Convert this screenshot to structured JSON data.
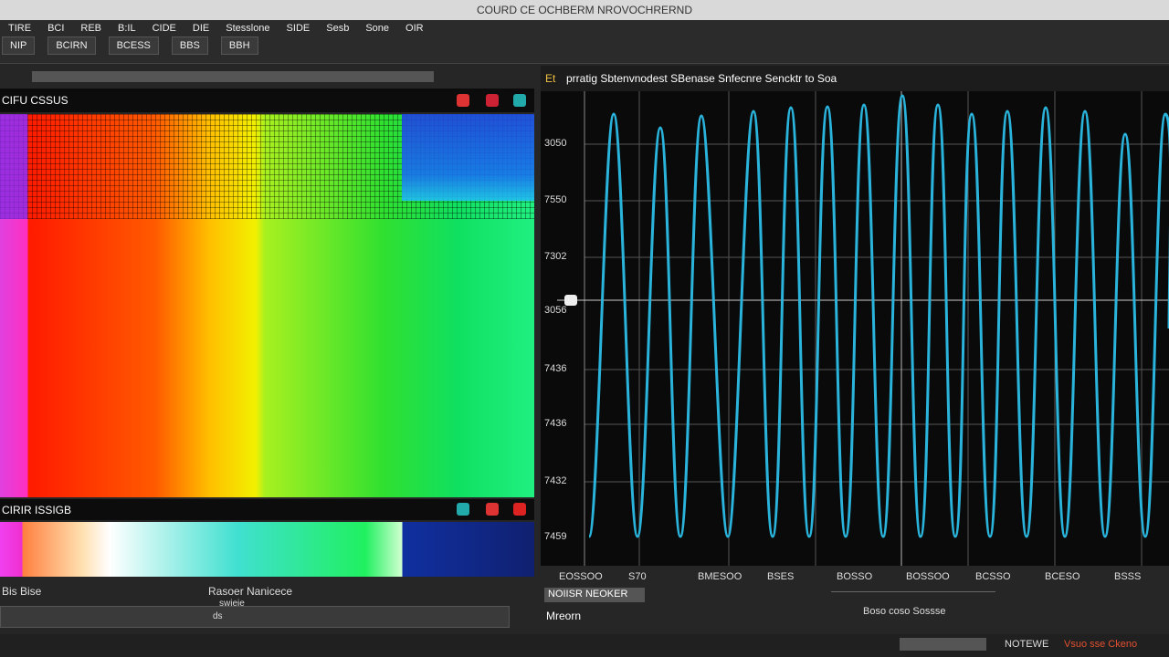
{
  "window": {
    "title": "COURD CE OCHBERM NROVOCHRERND"
  },
  "menu": [
    "TIRE",
    "BCI",
    "REB",
    "B:IL",
    "CIDE",
    "DIE",
    "Stesslone",
    "SIDE",
    "Sesb",
    "Sone",
    "OIR"
  ],
  "toolbar": [
    "NIP",
    "BCIRN",
    "BCESS",
    "BBS",
    "BBH"
  ],
  "spectrum_panel": {
    "title": "CIFU CSSUS",
    "bar_title": "CIRIR ISSIGB",
    "footer_left": "Bis Bise",
    "footer_right": "Rasoer Nanicece",
    "footer_sub": "swieie",
    "slider_label": "ds"
  },
  "signal_panel": {
    "tag": "Et",
    "title": "prratig Sbtenvnodest SBenase Snfecnre Sencktr to Soa",
    "y_labels": [
      "3050",
      "7550",
      "7302",
      "3056",
      "7436",
      "7436",
      "7432",
      "7459"
    ],
    "x_labels": [
      "EOSSOO",
      "S70",
      "BMESOO",
      "BSES",
      "BOSSO",
      "BOSSOO",
      "BCSSO",
      "BCESO",
      "BSSS"
    ],
    "status_left": "NOIISR NEOKER",
    "mode": "Mreorn",
    "readout": "Boso coso  Sossse"
  },
  "status_bar": {
    "label": "NOTEWE",
    "message": "Vsuo sse Ckeno"
  }
}
